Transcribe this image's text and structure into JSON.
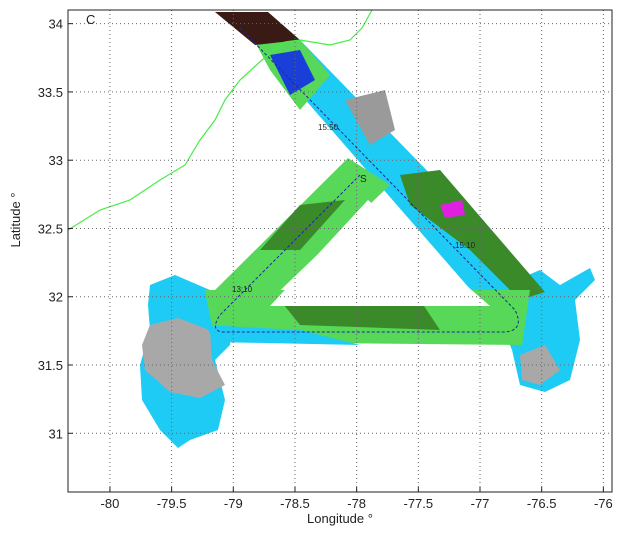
{
  "chart_data": {
    "type": "map",
    "panel_label": "C",
    "x_label": "Longitude °",
    "y_label": "Latitude °",
    "xlim": [
      -80.34,
      -75.93
    ],
    "ylim": [
      30.57,
      34.1
    ],
    "xticks": [
      -80,
      -79.5,
      -79,
      -78.5,
      -78,
      -77.5,
      -77,
      -76.5,
      -76
    ],
    "yticks": [
      31,
      31.5,
      32,
      32.5,
      33,
      33.5,
      34
    ],
    "grid": true,
    "annotations": [
      "15:50",
      "15:10",
      "13:10",
      "S"
    ]
  }
}
